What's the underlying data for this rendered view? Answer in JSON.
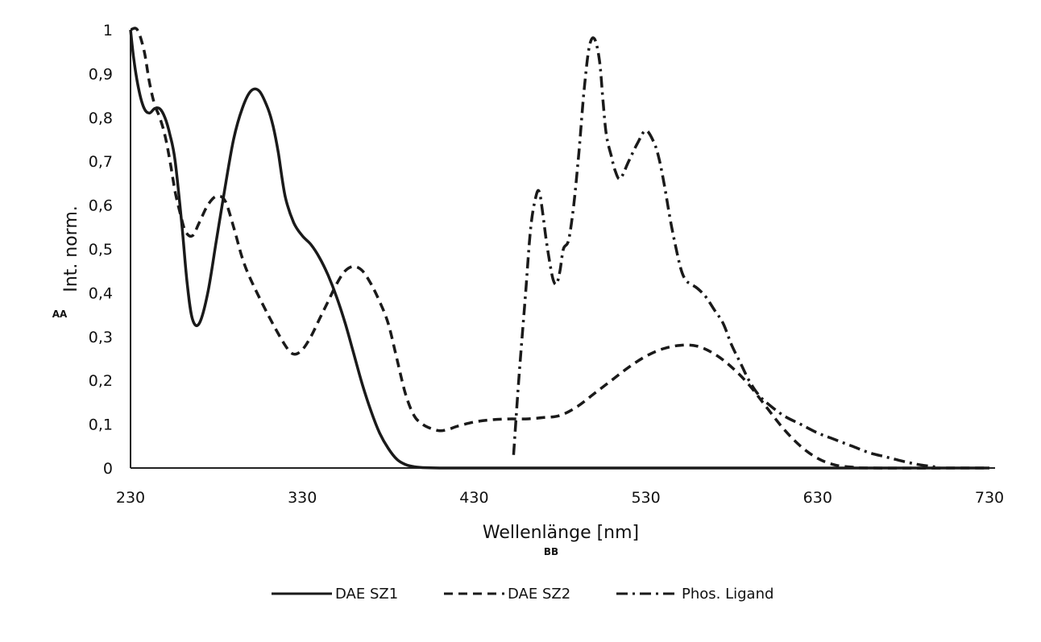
{
  "chart_data": {
    "type": "line",
    "title": "",
    "xlabel": "Wellenlänge [nm]",
    "ylabel": "Int. norm.",
    "x_callout": "BB",
    "y_callout": "AA",
    "xlim": [
      230,
      730
    ],
    "ylim": [
      0,
      1
    ],
    "x_ticks": [
      "230",
      "330",
      "430",
      "530",
      "630",
      "730"
    ],
    "y_ticks": [
      "0",
      "0,1",
      "0,2",
      "0,3",
      "0,4",
      "0,5",
      "0,6",
      "0,7",
      "0,8",
      "0,9",
      "1"
    ],
    "grid": false,
    "legend_position": "bottom",
    "series": [
      {
        "name": "DAE SZ1",
        "style": "solid",
        "x": [
          230,
          232,
          235,
          238,
          241,
          244,
          247,
          250,
          253,
          256,
          260,
          263,
          266,
          270,
          275,
          280,
          285,
          290,
          295,
          300,
          305,
          310,
          313,
          316,
          320,
          325,
          330,
          335,
          340,
          345,
          350,
          355,
          360,
          365,
          370,
          375,
          380,
          385,
          390,
          395,
          400,
          410,
          420,
          440,
          480,
          550,
          630,
          680,
          730
        ],
        "values": [
          1.0,
          0.93,
          0.86,
          0.82,
          0.81,
          0.82,
          0.82,
          0.8,
          0.76,
          0.7,
          0.55,
          0.42,
          0.34,
          0.33,
          0.4,
          0.52,
          0.64,
          0.75,
          0.82,
          0.86,
          0.86,
          0.82,
          0.78,
          0.72,
          0.62,
          0.56,
          0.53,
          0.51,
          0.48,
          0.44,
          0.39,
          0.33,
          0.26,
          0.19,
          0.13,
          0.08,
          0.045,
          0.02,
          0.008,
          0.003,
          0.001,
          0.0,
          0.0,
          0.0,
          0.0,
          0.0,
          0.0,
          0.0,
          0.0
        ]
      },
      {
        "name": "DAE SZ2",
        "style": "dashed",
        "x": [
          230,
          234,
          238,
          241,
          244,
          247,
          250,
          253,
          256,
          259,
          262,
          266,
          270,
          275,
          280,
          285,
          290,
          295,
          300,
          310,
          320,
          325,
          330,
          335,
          340,
          345,
          350,
          355,
          360,
          365,
          370,
          375,
          380,
          385,
          390,
          395,
          400,
          405,
          410,
          415,
          420,
          430,
          440,
          450,
          460,
          470,
          480,
          490,
          500,
          510,
          520,
          530,
          540,
          550,
          560,
          570,
          580,
          590,
          600,
          610,
          620,
          630,
          640,
          650,
          660,
          730
        ],
        "values": [
          1.0,
          1.0,
          0.95,
          0.88,
          0.83,
          0.8,
          0.76,
          0.7,
          0.63,
          0.58,
          0.54,
          0.53,
          0.56,
          0.6,
          0.62,
          0.61,
          0.55,
          0.48,
          0.43,
          0.35,
          0.28,
          0.26,
          0.27,
          0.3,
          0.34,
          0.38,
          0.42,
          0.45,
          0.46,
          0.45,
          0.42,
          0.38,
          0.33,
          0.25,
          0.17,
          0.12,
          0.1,
          0.09,
          0.085,
          0.088,
          0.095,
          0.105,
          0.11,
          0.112,
          0.112,
          0.115,
          0.12,
          0.14,
          0.17,
          0.2,
          0.23,
          0.255,
          0.272,
          0.28,
          0.278,
          0.26,
          0.23,
          0.19,
          0.14,
          0.09,
          0.05,
          0.022,
          0.007,
          0.002,
          0.0,
          0.0
        ]
      },
      {
        "name": "Phos. Ligand",
        "style": "dash-dot",
        "x": [
          453,
          456,
          460,
          463,
          466,
          468,
          470,
          472,
          474,
          476,
          478,
          480,
          482,
          485,
          488,
          491,
          494,
          497,
          500,
          503,
          505,
          507,
          510,
          512,
          515,
          520,
          525,
          530,
          535,
          538,
          541,
          545,
          550,
          553,
          556,
          560,
          565,
          570,
          575,
          580,
          585,
          590,
          595,
          600,
          610,
          620,
          630,
          640,
          650,
          660,
          670,
          680,
          690,
          700
        ],
        "values": [
          0.03,
          0.2,
          0.4,
          0.55,
          0.62,
          0.63,
          0.58,
          0.52,
          0.47,
          0.43,
          0.42,
          0.45,
          0.5,
          0.52,
          0.6,
          0.72,
          0.86,
          0.96,
          0.98,
          0.93,
          0.84,
          0.76,
          0.71,
          0.68,
          0.66,
          0.7,
          0.74,
          0.77,
          0.74,
          0.7,
          0.64,
          0.55,
          0.46,
          0.43,
          0.42,
          0.41,
          0.39,
          0.36,
          0.33,
          0.28,
          0.24,
          0.2,
          0.17,
          0.15,
          0.12,
          0.1,
          0.08,
          0.065,
          0.05,
          0.035,
          0.025,
          0.015,
          0.007,
          0.002
        ]
      }
    ]
  },
  "colors": {
    "line": "#1a1a1a",
    "axis": "#222222"
  }
}
